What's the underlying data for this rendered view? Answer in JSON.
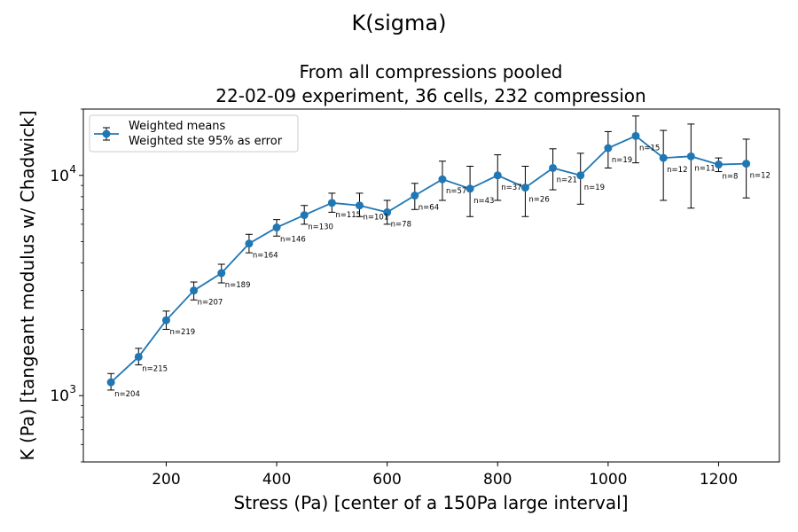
{
  "figure": {
    "suptitle": "K(sigma)"
  },
  "chart_data": {
    "type": "line",
    "title_line1": "From all compressions pooled",
    "title_line2": "22-02-09 experiment, 36 cells, 232 compression",
    "xlabel": "Stress (Pa) [center of a 150Pa large interval]",
    "ylabel": "K (Pa) [tangeant modulus w/ Chadwick]",
    "xlim": [
      50,
      1310
    ],
    "ylim": [
      500,
      20000
    ],
    "yscale": "log",
    "grid": false,
    "legend_placement": "top-left",
    "legend": [
      "Weighted means",
      "Weighted ste 95% as error"
    ],
    "series_color": "#1f77b4",
    "x_ticks": [
      200,
      400,
      600,
      800,
      1000,
      1200
    ],
    "x_tick_labels": [
      "200",
      "400",
      "600",
      "800",
      "1000",
      "1200"
    ],
    "y_major_ticks": [
      1000,
      10000
    ],
    "y_major_tick_labels": [
      {
        "base": "10",
        "exp": "3"
      },
      {
        "base": "10",
        "exp": "4"
      }
    ],
    "y_minor_ticks": [
      500,
      600,
      700,
      800,
      900,
      2000,
      3000,
      4000,
      5000,
      6000,
      7000,
      8000,
      9000,
      20000
    ],
    "points": [
      {
        "x": 100,
        "y": 1150,
        "lo": 1060,
        "hi": 1260,
        "n": "n=204"
      },
      {
        "x": 150,
        "y": 1500,
        "lo": 1380,
        "hi": 1640,
        "n": "n=215"
      },
      {
        "x": 200,
        "y": 2200,
        "lo": 2000,
        "hi": 2420,
        "n": "n=219"
      },
      {
        "x": 250,
        "y": 3000,
        "lo": 2720,
        "hi": 3280,
        "n": "n=207"
      },
      {
        "x": 300,
        "y": 3600,
        "lo": 3250,
        "hi": 3950,
        "n": "n=189"
      },
      {
        "x": 350,
        "y": 4900,
        "lo": 4450,
        "hi": 5400,
        "n": "n=164"
      },
      {
        "x": 400,
        "y": 5800,
        "lo": 5300,
        "hi": 6300,
        "n": "n=146"
      },
      {
        "x": 450,
        "y": 6600,
        "lo": 6000,
        "hi": 7300,
        "n": "n=130"
      },
      {
        "x": 500,
        "y": 7500,
        "lo": 6800,
        "hi": 8300,
        "n": "n=115"
      },
      {
        "x": 550,
        "y": 7300,
        "lo": 6500,
        "hi": 8300,
        "n": "n=101"
      },
      {
        "x": 600,
        "y": 6800,
        "lo": 6000,
        "hi": 7700,
        "n": "n=78"
      },
      {
        "x": 650,
        "y": 8100,
        "lo": 7000,
        "hi": 9200,
        "n": "n=64"
      },
      {
        "x": 700,
        "y": 9600,
        "lo": 7700,
        "hi": 11600,
        "n": "n=57"
      },
      {
        "x": 750,
        "y": 8700,
        "lo": 6500,
        "hi": 11000,
        "n": "n=43"
      },
      {
        "x": 800,
        "y": 10000,
        "lo": 7700,
        "hi": 12400,
        "n": "n=37"
      },
      {
        "x": 850,
        "y": 8800,
        "lo": 6500,
        "hi": 11000,
        "n": "n=26"
      },
      {
        "x": 900,
        "y": 10800,
        "lo": 8600,
        "hi": 13200,
        "n": "n=21"
      },
      {
        "x": 950,
        "y": 10000,
        "lo": 7400,
        "hi": 12600,
        "n": "n=19"
      },
      {
        "x": 1000,
        "y": 13300,
        "lo": 10800,
        "hi": 15800,
        "n": "n=19"
      },
      {
        "x": 1050,
        "y": 15100,
        "lo": 11400,
        "hi": 18600,
        "n": "n=15"
      },
      {
        "x": 1100,
        "y": 12000,
        "lo": 7700,
        "hi": 16000,
        "n": "n=12"
      },
      {
        "x": 1150,
        "y": 12200,
        "lo": 7100,
        "hi": 17100,
        "n": "n=11"
      },
      {
        "x": 1200,
        "y": 11200,
        "lo": 10400,
        "hi": 12000,
        "n": "n=8"
      },
      {
        "x": 1250,
        "y": 11300,
        "lo": 7900,
        "hi": 14600,
        "n": "n=12"
      }
    ]
  }
}
